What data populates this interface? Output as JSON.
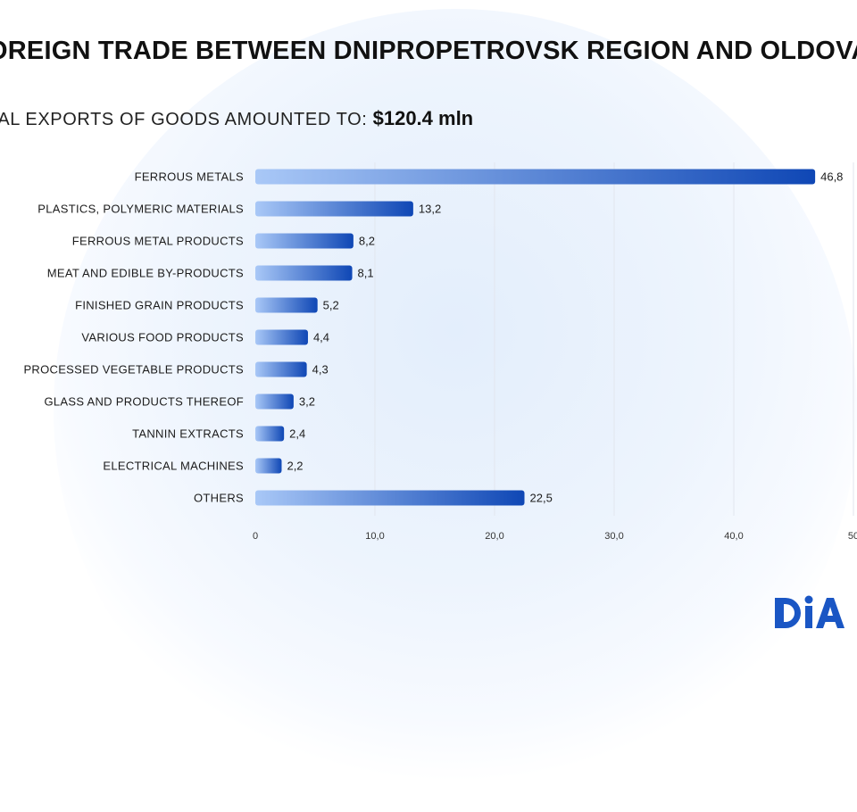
{
  "header": {
    "title": "OREIGN TRADE BETWEEN DNIPROPETROVSK REGION AND OLDOVA",
    "subtitle_prefix": "TAL EXPORTS OF GOODS AMOUNTED TO:",
    "subtitle_amount": "$120.4 mln"
  },
  "logo": {
    "text": "DIA",
    "icon": "dia-logo-icon",
    "color": "#1a56c4"
  },
  "colors": {
    "bar_start": "#a9c8f7",
    "bar_end": "#0f47b5"
  },
  "chart_data": {
    "type": "bar",
    "orientation": "horizontal",
    "categories": [
      "FERROUS METALS",
      "PLASTICS, POLYMERIC MATERIALS",
      "FERROUS METAL PRODUCTS",
      "MEAT AND EDIBLE BY-PRODUCTS",
      "FINISHED GRAIN PRODUCTS",
      "VARIOUS FOOD PRODUCTS",
      "PROCESSED VEGETABLE PRODUCTS",
      "GLASS AND PRODUCTS THEREOF",
      "TANNIN EXTRACTS",
      "ELECTRICAL MACHINES",
      "OTHERS"
    ],
    "values": [
      46.8,
      13.2,
      8.2,
      8.1,
      5.2,
      4.4,
      4.3,
      3.2,
      2.4,
      2.2,
      22.5
    ],
    "value_labels": [
      "46,8",
      "13,2",
      "8,2",
      "8,1",
      "5,2",
      "4,4",
      "4,3",
      "3,2",
      "2,4",
      "2,2",
      "22,5"
    ],
    "xlim": [
      0,
      50
    ],
    "ticks": [
      0,
      10,
      20,
      30,
      40,
      50
    ],
    "tick_labels": [
      "0",
      "10,0",
      "20,0",
      "30,0",
      "40,0",
      "50"
    ],
    "grid": true,
    "title": "",
    "xlabel": "",
    "ylabel": ""
  }
}
